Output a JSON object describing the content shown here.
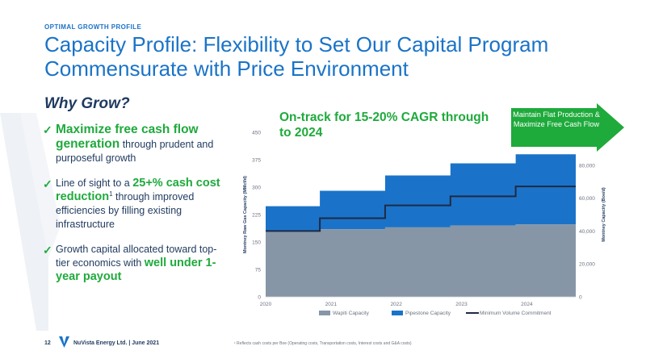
{
  "header": {
    "eyebrow": "OPTIMAL GROWTH PROFILE",
    "title": "Capacity Profile: Flexibility to Set Our Capital Program Commensurate with Price Environment"
  },
  "left": {
    "heading": "Why Grow?",
    "bullets": [
      {
        "highlight": "Maximize free cash flow generation",
        "rest": " through prudent and purposeful growth"
      },
      {
        "pre": "Line of sight to a ",
        "highlight": "25+% cash cost reduction",
        "sup": "1",
        "rest": " through improved efficiencies by filling existing infrastructure"
      },
      {
        "pre": "Growth capital allocated toward top-tier economics with ",
        "highlight": "well under 1-year payout"
      }
    ]
  },
  "chart_headline": "On-track for 15-20% CAGR through to 2024",
  "arrow_callout": "Maintain Flat Production & Maximize Free Cash Flow",
  "colors": {
    "accent_blue": "#1a73c8",
    "green": "#1faa3c",
    "wapiti": "#8696a7",
    "pipestone": "#1a73c8",
    "mvc_line": "#1f2a44"
  },
  "chart_data": {
    "type": "area",
    "x_ticks": [
      "2020",
      "2021",
      "2022",
      "2023",
      "2024"
    ],
    "xlim": [
      2020,
      2024.75
    ],
    "ylabel": "Montney Raw Gas Capacity (MMcf/d)",
    "y_ticks": [
      "0",
      "75",
      "150",
      "225",
      "300",
      "375",
      "450"
    ],
    "ylim": [
      0,
      450
    ],
    "y2label": "Montney Capacity (Boe/d)",
    "y2_ticks": [
      "0",
      "20,000",
      "40,000",
      "60,000",
      "80,000"
    ],
    "y2lim": [
      0,
      100000
    ],
    "legend": [
      "Wapiti Capacity",
      "Pipestone Capacity",
      "Minimum Volume Commitment"
    ],
    "legend_position": "bottom",
    "grid": false,
    "x": [
      2020,
      2020.83,
      2020.83,
      2021.83,
      2021.83,
      2022.83,
      2022.83,
      2023.83,
      2023.83,
      2024.75
    ],
    "series": [
      {
        "name": "Wapiti Capacity",
        "values": [
          178,
          178,
          185,
          185,
          190,
          190,
          195,
          195,
          198,
          198
        ]
      },
      {
        "name": "Pipestone Capacity",
        "values": [
          70,
          70,
          105,
          105,
          142,
          142,
          170,
          170,
          192,
          192
        ]
      },
      {
        "name": "Minimum Volume Commitment",
        "values": [
          180,
          180,
          215,
          215,
          250,
          250,
          275,
          275,
          302,
          302
        ]
      }
    ]
  },
  "footer": {
    "page": "12",
    "company": "NuVista Energy Ltd. | June 2021",
    "footnote": "¹ Reflects cash costs per Boe (Operating costs, Transportation costs, Interest costs and G&A costs)"
  }
}
